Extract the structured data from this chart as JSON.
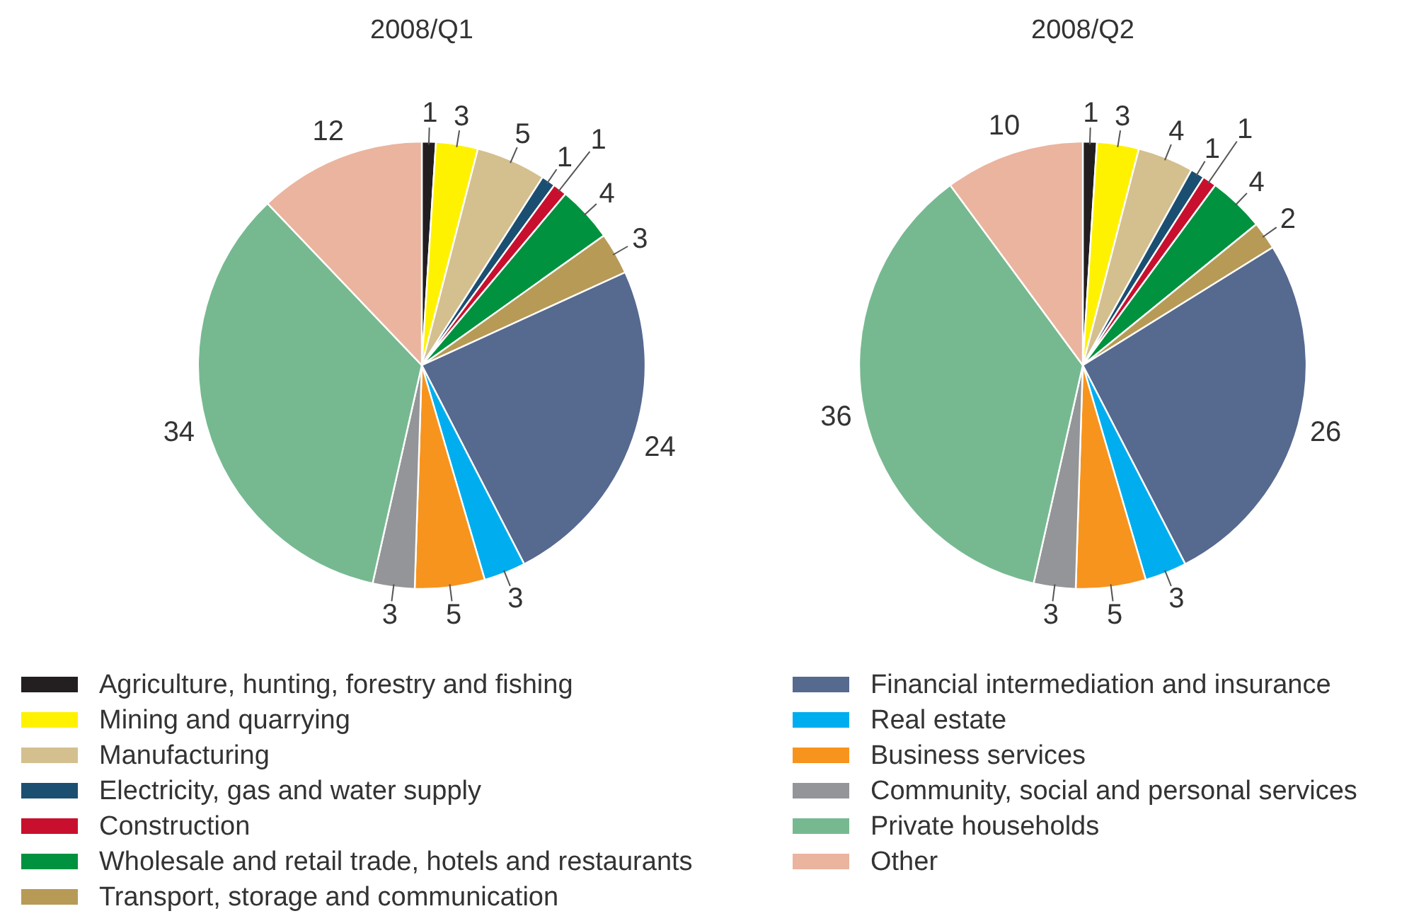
{
  "chart_data": [
    {
      "type": "pie",
      "title": "2008/Q1",
      "legend": "bottom",
      "data_labels": true,
      "categories": [
        "Agriculture, hunting, forestry and fishing",
        "Mining and quarrying",
        "Manufacturing",
        "Electricity, gas and water supply",
        "Construction",
        "Wholesale and retail trade, hotels and restaurants",
        "Transport, storage and communication",
        "Financial intermediation and insurance",
        "Real estate",
        "Business services",
        "Community, social and personal services",
        "Private households",
        "Other"
      ],
      "values": [
        1,
        3,
        5,
        1,
        1,
        4,
        3,
        24,
        3,
        5,
        3,
        34,
        12
      ],
      "colors": [
        "#231f20",
        "#fff200",
        "#d4bf8f",
        "#1b4f72",
        "#c8102e",
        "#00923f",
        "#b79a56",
        "#56698f",
        "#00aeef",
        "#f7941d",
        "#939598",
        "#76b990",
        "#ebb49e"
      ]
    },
    {
      "type": "pie",
      "title": "2008/Q2",
      "data_labels": true,
      "categories": [
        null,
        null,
        null,
        null,
        null,
        null,
        null,
        null,
        null,
        null,
        null,
        null,
        null
      ],
      "values": [
        1,
        3,
        4,
        1,
        1,
        4,
        2,
        26,
        3,
        5,
        3,
        36,
        10
      ],
      "colors": [
        "#231f20",
        "#fff200",
        "#d4bf8f",
        "#1b4f72",
        "#c8102e",
        "#00923f",
        "#b79a56",
        "#56698f",
        "#00aeef",
        "#f7941d",
        "#939598",
        "#76b990",
        "#ebb49e"
      ]
    }
  ]
}
